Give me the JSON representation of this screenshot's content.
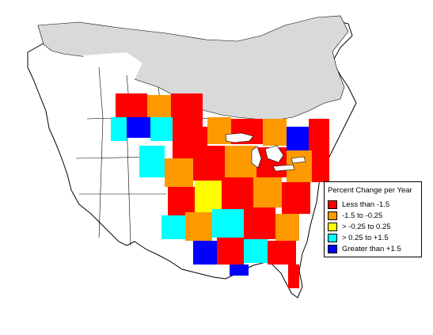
{
  "legend": {
    "title": "Percent Change per Year",
    "items": [
      {
        "label": "Less than -1.5",
        "color": "#ff0000"
      },
      {
        "label": "-1.5 to -0.25",
        "color": "#ff9900"
      },
      {
        "label": "> -0.25 to 0.25",
        "color": "#ffff00"
      },
      {
        "label": "> 0.25 to +1.5",
        "color": "#00ffff"
      },
      {
        "label": "Greater than +1.5",
        "color": "#0000ff"
      }
    ]
  },
  "map_colors": {
    "no_data": "#d9d9d9",
    "land": "#ffffff",
    "outline": "#000000"
  }
}
